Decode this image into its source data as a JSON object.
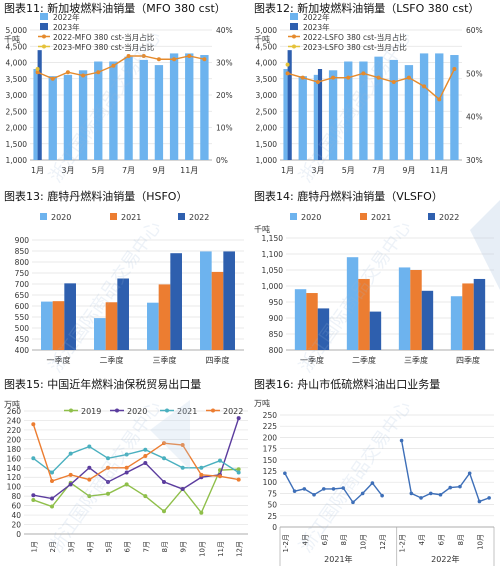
{
  "chart_data": [
    {
      "id": "c11",
      "title": "图表11:  新加坡燃料油销量（MFO 380 cst）",
      "type": "bar+line",
      "unit": "千吨",
      "categories": [
        "1月",
        "2月",
        "3月",
        "4月",
        "5月",
        "6月",
        "7月",
        "8月",
        "9月",
        "10月",
        "11月",
        "12月"
      ],
      "x_tick_labels": [
        "1月",
        "",
        "3月",
        "",
        "5月",
        "",
        "7月",
        "",
        "9月",
        "",
        "11月",
        ""
      ],
      "y_left": {
        "min": 1000,
        "max": 5000,
        "step": 500,
        "ticks": [
          "1,000",
          "1,500",
          "2,000",
          "2,500",
          "3,000",
          "3,500",
          "4,000",
          "4,500",
          "5,000"
        ]
      },
      "y_right": {
        "min": 0,
        "max": 40,
        "step": 10,
        "ticks": [
          "0%",
          "10%",
          "20%",
          "30%",
          "40%"
        ]
      },
      "series": [
        {
          "name": "2022年",
          "kind": "bar",
          "color": "#6db3ee",
          "values": [
            3800,
            3580,
            3620,
            3760,
            4030,
            4030,
            4180,
            4080,
            3920,
            4280,
            4280,
            4230
          ]
        },
        {
          "name": "2023年",
          "kind": "bar",
          "color": "#2e5fae",
          "values": [
            4380,
            null,
            null,
            null,
            null,
            null,
            null,
            null,
            null,
            null,
            null,
            null
          ]
        },
        {
          "name": "2022-MFO 380 cst-当月占比",
          "kind": "line",
          "axis": "right",
          "color": "#e58a2c",
          "values": [
            27,
            25,
            27,
            26,
            27,
            29,
            32,
            32,
            31,
            31,
            32,
            31
          ]
        },
        {
          "name": "2023-MFO 380 cst-当月占比",
          "kind": "line",
          "axis": "right",
          "color": "#e5c23a",
          "values": [
            28,
            null,
            null,
            null,
            null,
            null,
            null,
            null,
            null,
            null,
            null,
            null
          ]
        }
      ]
    },
    {
      "id": "c12",
      "title": "图表12:  新加坡燃料油销量（LSFO 380 cst）",
      "type": "bar+line",
      "unit": "千吨",
      "categories": [
        "1月",
        "2月",
        "3月",
        "4月",
        "5月",
        "6月",
        "7月",
        "8月",
        "9月",
        "10月",
        "11月",
        "12月"
      ],
      "x_tick_labels": [
        "1月",
        "",
        "3月",
        "",
        "5月",
        "",
        "7月",
        "",
        "9月",
        "",
        "11月",
        ""
      ],
      "y_left": {
        "min": 1000,
        "max": 5000,
        "step": 500,
        "ticks": [
          "1,000",
          "1,500",
          "2,000",
          "2,500",
          "3,000",
          "3,500",
          "4,000",
          "4,500",
          "5,000"
        ]
      },
      "y_right": {
        "min": 30,
        "max": 60,
        "step": 10,
        "ticks": [
          "30%",
          "40%",
          "50%",
          "60%"
        ]
      },
      "series": [
        {
          "name": "2022年",
          "kind": "bar",
          "color": "#6db3ee",
          "values": [
            3800,
            3580,
            3620,
            3760,
            4030,
            4030,
            4180,
            4080,
            3920,
            4280,
            4280,
            4230
          ]
        },
        {
          "name": "2023年",
          "kind": "bar",
          "color": "#2e5fae",
          "values": [
            4380,
            null,
            3800,
            null,
            null,
            null,
            null,
            null,
            null,
            null,
            null,
            null
          ]
        },
        {
          "name": "2022-LSFO 380 cst-当月占比",
          "kind": "line",
          "axis": "right",
          "color": "#e58a2c",
          "values": [
            50,
            49,
            48,
            49,
            49,
            50,
            49,
            48,
            49,
            47,
            44,
            51
          ]
        },
        {
          "name": "2023-LSFO 380 cst-当月占比",
          "kind": "line",
          "axis": "right",
          "color": "#e5c23a",
          "values": [
            52,
            null,
            null,
            null,
            null,
            null,
            null,
            null,
            null,
            null,
            null,
            null
          ]
        }
      ]
    },
    {
      "id": "c13",
      "title": "图表13:  鹿特丹燃料油销量（HSFO）",
      "type": "bar",
      "unit": "",
      "categories": [
        "一季度",
        "二季度",
        "三季度",
        "四季度"
      ],
      "y_left": {
        "min": 400,
        "max": 900,
        "step": 50,
        "ticks": [
          "400",
          "450",
          "500",
          "550",
          "600",
          "650",
          "700",
          "750",
          "800",
          "850",
          "900"
        ]
      },
      "series": [
        {
          "name": "2020",
          "kind": "bar",
          "color": "#6db3ee",
          "values": [
            620,
            545,
            615,
            848
          ]
        },
        {
          "name": "2021",
          "kind": "bar",
          "color": "#ec7d31",
          "values": [
            622,
            617,
            698,
            755
          ]
        },
        {
          "name": "2022",
          "kind": "bar",
          "color": "#2e5fae",
          "values": [
            703,
            725,
            840,
            848
          ]
        }
      ]
    },
    {
      "id": "c14",
      "title": "图表14:  鹿特丹燃料油销量（VLSFO）",
      "type": "bar",
      "unit": "千吨",
      "categories": [
        "一季度",
        "二季度",
        "三季度",
        "四季度"
      ],
      "y_left": {
        "min": 800,
        "max": 1150,
        "step": 50,
        "ticks": [
          "800",
          "850",
          "900",
          "950",
          "1,000",
          "1,050",
          "1,100",
          "1,150"
        ]
      },
      "series": [
        {
          "name": "2020",
          "kind": "bar",
          "color": "#6db3ee",
          "values": [
            990,
            1090,
            1058,
            968
          ]
        },
        {
          "name": "2021",
          "kind": "bar",
          "color": "#ec7d31",
          "values": [
            978,
            1022,
            1050,
            1008
          ]
        },
        {
          "name": "2022",
          "kind": "bar",
          "color": "#2e5fae",
          "values": [
            930,
            920,
            985,
            1022
          ]
        }
      ]
    },
    {
      "id": "c15",
      "title": "图表15:  中国近年燃料油保税贸易出口量",
      "type": "line",
      "unit": "万吨",
      "categories": [
        "1月",
        "2月",
        "3月",
        "4月",
        "5月",
        "6月",
        "7月",
        "8月",
        "9月",
        "10月",
        "11月",
        "12月"
      ],
      "y_left": {
        "min": 0,
        "max": 260,
        "step": 20,
        "ticks": [
          "0",
          "20",
          "40",
          "60",
          "80",
          "100",
          "120",
          "140",
          "160",
          "180",
          "200",
          "220",
          "240",
          "260"
        ]
      },
      "series": [
        {
          "name": "2019",
          "kind": "line",
          "color": "#8fbf4a",
          "values": [
            72,
            58,
            108,
            80,
            85,
            105,
            80,
            48,
            95,
            45,
            135,
            137
          ]
        },
        {
          "name": "2020",
          "kind": "line",
          "color": "#5b3c9e",
          "values": [
            82,
            75,
            105,
            140,
            110,
            130,
            150,
            110,
            95,
            120,
            125,
            245
          ]
        },
        {
          "name": "2021",
          "kind": "line",
          "color": "#4ab0bf",
          "values": [
            160,
            130,
            170,
            185,
            160,
            168,
            178,
            160,
            140,
            140,
            155,
            130
          ]
        },
        {
          "name": "2022",
          "kind": "line",
          "color": "#ec7d31",
          "values": [
            232,
            112,
            125,
            115,
            140,
            140,
            165,
            192,
            188,
            125,
            122,
            115
          ]
        }
      ]
    },
    {
      "id": "c16",
      "title": "图表16:  舟山市低硫燃料油出口业务量",
      "type": "line",
      "unit": "万吨",
      "x_tick_labels": [
        "1-2月",
        "",
        "4月",
        "",
        "6月",
        "",
        "8月",
        "",
        "10月",
        "",
        "12月",
        "",
        "1-2月",
        "",
        "4月",
        "",
        "6月",
        "",
        "8月",
        "",
        "10月",
        ""
      ],
      "groups": [
        "2021年",
        "2022年"
      ],
      "y_left": {
        "min": 0,
        "max": 250,
        "step": 25,
        "ticks": [
          "0",
          "25",
          "50",
          "75",
          "100",
          "125",
          "150",
          "175",
          "200",
          "225",
          "250"
        ]
      },
      "series": [
        {
          "name": "",
          "kind": "line",
          "color": "#3e6fb8",
          "values": [
            120,
            80,
            85,
            72,
            85,
            85,
            87,
            55,
            75,
            98,
            70,
            null,
            193,
            75,
            65,
            75,
            72,
            88,
            90,
            120,
            57,
            65
          ]
        }
      ]
    }
  ],
  "watermark": "浙江国际商品交易中心"
}
